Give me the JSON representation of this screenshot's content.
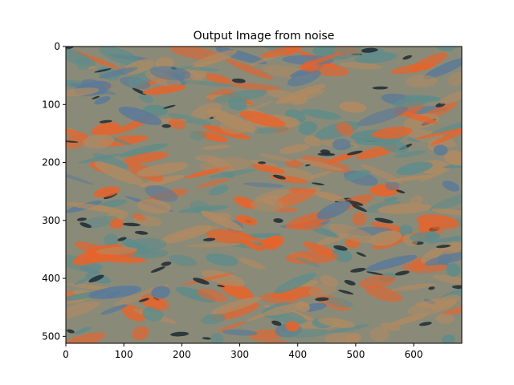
{
  "chart_data": {
    "type": "heatmap",
    "title": "Output Image from noise",
    "xlabel": "",
    "ylabel": "",
    "image_shape": [
      512,
      683
    ],
    "xlim": [
      0,
      683
    ],
    "ylim": [
      512,
      0
    ],
    "x_ticks": [
      0,
      100,
      200,
      300,
      400,
      500,
      600
    ],
    "y_ticks": [
      0,
      100,
      200,
      300,
      400,
      500
    ],
    "x_tick_labels": [
      "0",
      "100",
      "200",
      "300",
      "400",
      "500",
      "600"
    ],
    "y_tick_labels": [
      "0",
      "100",
      "200",
      "300",
      "400",
      "500"
    ],
    "grid": false,
    "palette": {
      "base": "#8a8a78",
      "orange": "#e8632a",
      "teal": "#5e8c8a",
      "slate_blue": "#5b7a98",
      "dark": "#1d2a33",
      "tan": "#b08a62"
    }
  }
}
